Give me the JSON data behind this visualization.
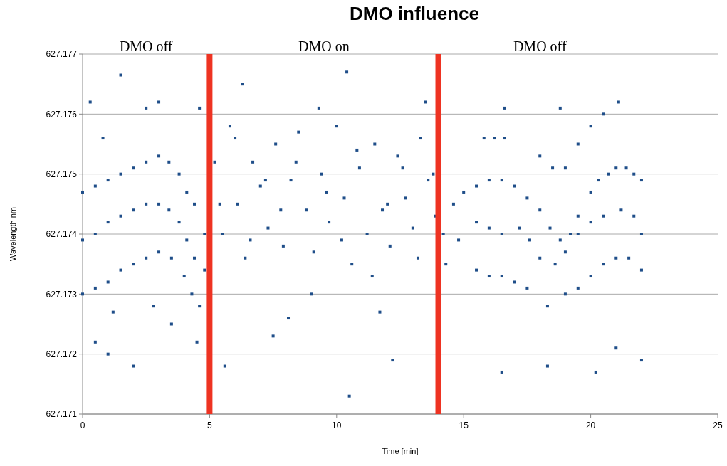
{
  "chart_data": {
    "type": "scatter",
    "title": "DMO influence",
    "xlabel": "Time [min]",
    "ylabel": "Wavelength nm",
    "xlim": [
      0,
      25
    ],
    "xticks": [
      0,
      5,
      10,
      15,
      20,
      25
    ],
    "ylim": [
      627.171,
      627.177
    ],
    "yticks": [
      627.171,
      627.172,
      627.173,
      627.174,
      627.175,
      627.176,
      627.177
    ],
    "grid": "y",
    "marker": "square",
    "x": [
      0,
      0.5,
      1,
      1.5,
      2,
      2.5,
      3,
      3.4,
      3.8,
      4.1,
      4.4,
      4.8,
      0,
      0.5,
      1,
      1.5,
      2,
      2.5,
      3,
      3.4,
      3.8,
      4.1,
      4.4,
      4.8,
      0,
      0.5,
      1,
      1.5,
      2,
      2.5,
      3,
      3.5,
      4,
      4.3,
      4.6,
      0.3,
      1.5,
      0.8,
      2.5,
      3,
      0.5,
      1,
      2,
      3.5,
      4.5,
      4.6,
      1.2,
      2.8,
      5.2,
      5.5,
      5.8,
      6.1,
      6.4,
      6.7,
      7,
      7.3,
      7.6,
      7.9,
      8.2,
      8.5,
      8.8,
      9.1,
      9.4,
      9.7,
      10,
      10.3,
      10.6,
      10.9,
      11.2,
      11.5,
      11.8,
      12.1,
      12.4,
      12.7,
      13,
      13.3,
      13.6,
      13.9,
      5.4,
      6,
      6.6,
      7.2,
      7.8,
      8.4,
      9,
      9.6,
      10.2,
      10.8,
      11.4,
      12,
      12.6,
      13.2,
      13.8,
      6.3,
      8.1,
      10.4,
      10.5,
      12.2,
      13.5,
      7.5,
      9.3,
      11.7,
      5.6,
      14.2,
      14.6,
      15,
      15.5,
      16,
      16.5,
      17,
      17.5,
      18,
      18.4,
      18.8,
      19.2,
      19.5,
      20,
      20.3,
      20.7,
      21,
      21.4,
      21.7,
      22,
      14.3,
      14.8,
      15.5,
      16,
      16.5,
      17.2,
      17.6,
      18,
      18.6,
      19,
      19.5,
      20,
      20.5,
      21.2,
      21.7,
      22,
      15.5,
      16,
      16.5,
      17,
      17.5,
      18.3,
      19,
      19.5,
      20,
      20.5,
      21,
      21.5,
      22,
      15.8,
      16.2,
      16.6,
      18,
      18.5,
      19,
      19.5,
      20,
      20.5,
      16.5,
      18.3,
      20.2,
      21,
      22,
      16.6,
      18.8,
      21.1
    ],
    "values": [
      627.1747,
      627.1748,
      627.1749,
      627.175,
      627.1751,
      627.1752,
      627.1753,
      627.1752,
      627.175,
      627.1747,
      627.1745,
      627.174,
      627.1739,
      627.174,
      627.1742,
      627.1743,
      627.1744,
      627.1745,
      627.1745,
      627.1744,
      627.1742,
      627.1739,
      627.1736,
      627.1734,
      627.173,
      627.1731,
      627.1732,
      627.1734,
      627.1735,
      627.1736,
      627.1737,
      627.1736,
      627.1733,
      627.173,
      627.1728,
      627.1762,
      627.17665,
      627.1756,
      627.1761,
      627.1762,
      627.1722,
      627.172,
      627.1718,
      627.1725,
      627.1722,
      627.1761,
      627.1727,
      627.1728,
      627.1752,
      627.174,
      627.1758,
      627.1745,
      627.1736,
      627.1752,
      627.1748,
      627.1741,
      627.1755,
      627.1738,
      627.1749,
      627.1757,
      627.1744,
      627.1737,
      627.175,
      627.1742,
      627.1758,
      627.1746,
      627.1735,
      627.1751,
      627.174,
      627.1755,
      627.1744,
      627.1738,
      627.1753,
      627.1746,
      627.1741,
      627.1756,
      627.1749,
      627.1743,
      627.1745,
      627.1756,
      627.1739,
      627.1749,
      627.1744,
      627.1752,
      627.173,
      627.1747,
      627.1739,
      627.1754,
      627.1733,
      627.1745,
      627.1751,
      627.1736,
      627.175,
      627.1765,
      627.1726,
      627.1767,
      627.1713,
      627.1719,
      627.1762,
      627.1723,
      627.1761,
      627.1727,
      627.1718,
      627.174,
      627.1745,
      627.1747,
      627.1748,
      627.1749,
      627.1749,
      627.1748,
      627.1746,
      627.1744,
      627.1741,
      627.1739,
      627.174,
      627.1743,
      627.1747,
      627.1749,
      627.175,
      627.1751,
      627.1751,
      627.175,
      627.1749,
      627.1735,
      627.1739,
      627.1742,
      627.1741,
      627.174,
      627.1741,
      627.1739,
      627.1736,
      627.1735,
      627.1737,
      627.174,
      627.1742,
      627.1743,
      627.1744,
      627.1743,
      627.174,
      627.1734,
      627.1733,
      627.1733,
      627.1732,
      627.1731,
      627.1728,
      627.173,
      627.1731,
      627.1733,
      627.1735,
      627.1736,
      627.1736,
      627.1734,
      627.1756,
      627.1756,
      627.1756,
      627.1753,
      627.1751,
      627.1751,
      627.1755,
      627.1758,
      627.176,
      627.1717,
      627.1718,
      627.1717,
      627.1721,
      627.1719,
      627.1761,
      627.1761,
      627.1762
    ],
    "color": "#1f4e89",
    "ref_lines": [
      {
        "axis": "x",
        "value": 5,
        "color": "#ee3322"
      },
      {
        "axis": "x",
        "value": 14,
        "color": "#ee3322"
      }
    ],
    "annotations": [
      "DMO off",
      "DMO on",
      "DMO off"
    ]
  }
}
